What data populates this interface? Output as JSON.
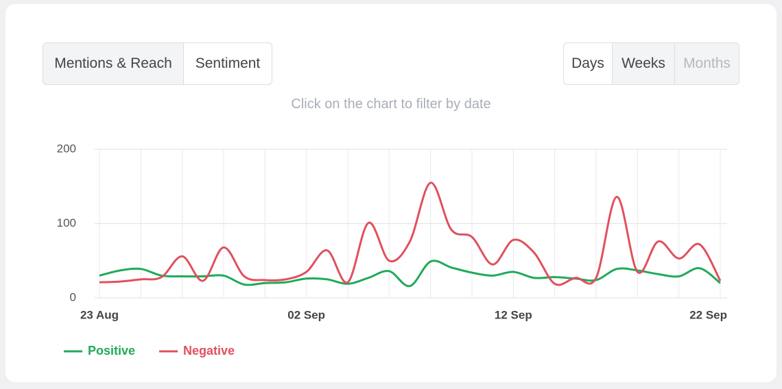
{
  "tabs": {
    "left": [
      "Mentions & Reach",
      "Sentiment"
    ],
    "right": [
      "Days",
      "Weeks",
      "Months"
    ]
  },
  "hint": "Click on the chart to filter by date",
  "chart_data": {
    "type": "line",
    "categories": [
      "23 Aug",
      null,
      null,
      null,
      null,
      null,
      null,
      null,
      null,
      null,
      "02 Sep",
      null,
      null,
      null,
      null,
      null,
      null,
      null,
      null,
      null,
      "12 Sep",
      null,
      null,
      null,
      null,
      null,
      null,
      null,
      null,
      null,
      "22 Sep"
    ],
    "series": [
      {
        "name": "Positive",
        "color": "#1faa59",
        "values": [
          30,
          37,
          39,
          30,
          29,
          29,
          30,
          18,
          20,
          21,
          26,
          25,
          19,
          27,
          36,
          16,
          49,
          41,
          34,
          30,
          35,
          27,
          28,
          26,
          24,
          39,
          37,
          32,
          29,
          40,
          20
        ]
      },
      {
        "name": "Negative",
        "color": "#e0505d",
        "values": [
          21,
          22,
          25,
          28,
          56,
          23,
          68,
          29,
          24,
          25,
          35,
          64,
          21,
          101,
          50,
          76,
          155,
          92,
          82,
          45,
          78,
          61,
          19,
          27,
          27,
          136,
          35,
          76,
          53,
          72,
          23
        ]
      }
    ],
    "ylim": [
      0,
      200
    ],
    "yticks": [
      0,
      100,
      200
    ],
    "grid": true,
    "legend": "bottom-left"
  }
}
